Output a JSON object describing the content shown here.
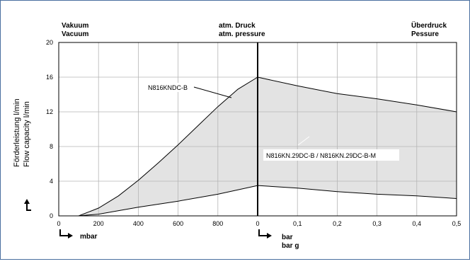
{
  "chart_data": {
    "type": "area",
    "ylabel_de": "Förderleistung  l/min",
    "ylabel_en": "Flow capacity l/min",
    "ylim": [
      0,
      20
    ],
    "y_ticks": [
      "0",
      "4",
      "8",
      "12",
      "16",
      "20"
    ],
    "y_tick_values": [
      0,
      4,
      8,
      12,
      16,
      20
    ],
    "x_left": {
      "unit": "mbar",
      "xlim": [
        0,
        1000
      ],
      "ticks": [
        "0",
        "200",
        "400",
        "600",
        "800",
        "0"
      ],
      "tick_values": [
        0,
        200,
        400,
        600,
        800,
        1000
      ]
    },
    "x_right": {
      "unit_1": "bar",
      "unit_2": "bar g",
      "xlim": [
        0,
        0.5
      ],
      "ticks": [
        "0,1",
        "0,2",
        "0,3",
        "0,4",
        "0,5"
      ],
      "tick_values": [
        0.1,
        0.2,
        0.3,
        0.4,
        0.5
      ]
    },
    "regions": {
      "vacuum_de": "Vakuum",
      "vacuum_en": "Vacuum",
      "atm_de": "atm. Druck",
      "atm_en": "atm. pressure",
      "over_de": "Überdruck",
      "over_en": "Pessure"
    },
    "series": [
      {
        "name": "N816KNDC-B",
        "vacuum": [
          [
            100,
            0
          ],
          [
            200,
            0.9
          ],
          [
            300,
            2.3
          ],
          [
            400,
            4.1
          ],
          [
            500,
            6.1
          ],
          [
            600,
            8.2
          ],
          [
            700,
            10.4
          ],
          [
            800,
            12.6
          ],
          [
            900,
            14.6
          ],
          [
            1000,
            16
          ]
        ],
        "pressure": [
          [
            0,
            16
          ],
          [
            0.1,
            15.0
          ],
          [
            0.2,
            14.1
          ],
          [
            0.3,
            13.5
          ],
          [
            0.4,
            12.8
          ],
          [
            0.5,
            12.0
          ]
        ]
      },
      {
        "name": "N816KN.29DC-B / N816KN.29DC-B-M",
        "vacuum": [
          [
            100,
            0
          ],
          [
            200,
            0.2
          ],
          [
            400,
            1.0
          ],
          [
            600,
            1.7
          ],
          [
            800,
            2.5
          ],
          [
            1000,
            3.5
          ]
        ],
        "pressure": [
          [
            0,
            3.5
          ],
          [
            0.1,
            3.2
          ],
          [
            0.2,
            2.8
          ],
          [
            0.3,
            2.5
          ],
          [
            0.4,
            2.3
          ],
          [
            0.5,
            2.0
          ]
        ]
      }
    ],
    "grid": true,
    "fill_color": "#e3e3e3",
    "line_color": "#000000"
  }
}
